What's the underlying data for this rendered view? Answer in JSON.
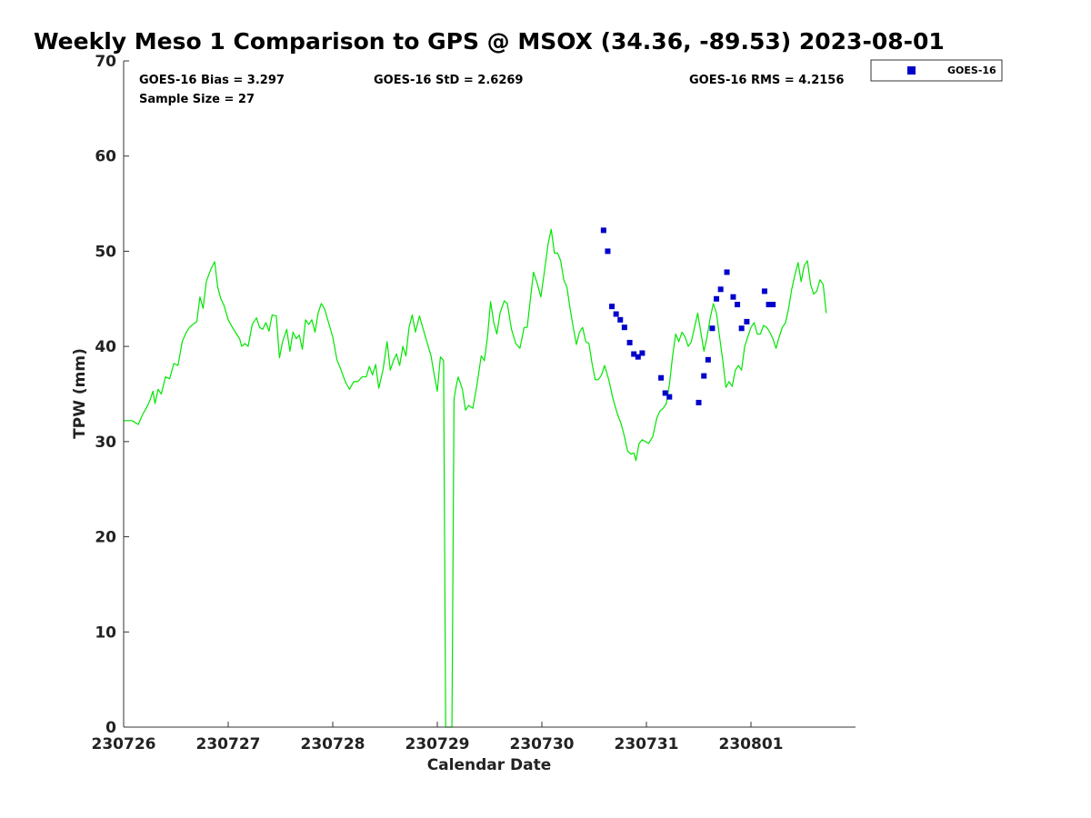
{
  "chart_data": {
    "type": "scatter",
    "title": "Weekly Meso 1 Comparison to GPS @ MSOX (34.36, -89.53) 2023-08-01",
    "xlabel": "Calendar Date",
    "ylabel": "TPW (mm)",
    "x_tick_labels": [
      "230726",
      "230727",
      "230728",
      "230729",
      "230730",
      "230731",
      "230801"
    ],
    "x_unit": "days from 230726",
    "xlim": [
      0,
      7
    ],
    "ylim": [
      0,
      70
    ],
    "y_ticks": [
      0,
      10,
      20,
      30,
      40,
      50,
      60,
      70
    ],
    "grid": false,
    "legend": {
      "position": "top-right-outside",
      "entries": [
        "GOES-16"
      ]
    },
    "stats": {
      "bias": "GOES-16 Bias = 3.297",
      "std": "GOES-16 StD = 2.6269",
      "rms": "GOES-16 RMS = 4.2156",
      "sample": "Sample Size = 27"
    },
    "series": [
      {
        "kind": "line",
        "color": "#00e600",
        "points": [
          [
            0.0,
            32.2
          ],
          [
            0.08,
            32.2
          ],
          [
            0.14,
            31.8
          ],
          [
            0.18,
            32.8
          ],
          [
            0.22,
            33.6
          ],
          [
            0.25,
            34.3
          ],
          [
            0.28,
            35.3
          ],
          [
            0.3,
            34.0
          ],
          [
            0.33,
            35.5
          ],
          [
            0.36,
            35.0
          ],
          [
            0.4,
            36.8
          ],
          [
            0.44,
            36.6
          ],
          [
            0.48,
            38.2
          ],
          [
            0.52,
            38.0
          ],
          [
            0.56,
            40.5
          ],
          [
            0.6,
            41.5
          ],
          [
            0.63,
            42.0
          ],
          [
            0.66,
            42.3
          ],
          [
            0.7,
            42.6
          ],
          [
            0.73,
            45.2
          ],
          [
            0.76,
            44.0
          ],
          [
            0.79,
            46.8
          ],
          [
            0.83,
            48.0
          ],
          [
            0.87,
            48.9
          ],
          [
            0.9,
            46.2
          ],
          [
            0.93,
            45.0
          ],
          [
            0.96,
            44.3
          ],
          [
            1.0,
            42.8
          ],
          [
            1.04,
            42.0
          ],
          [
            1.08,
            41.3
          ],
          [
            1.11,
            40.8
          ],
          [
            1.13,
            40.0
          ],
          [
            1.16,
            40.3
          ],
          [
            1.19,
            40.0
          ],
          [
            1.23,
            42.3
          ],
          [
            1.27,
            43.0
          ],
          [
            1.3,
            42.0
          ],
          [
            1.33,
            41.8
          ],
          [
            1.36,
            42.5
          ],
          [
            1.39,
            41.6
          ],
          [
            1.42,
            43.3
          ],
          [
            1.46,
            43.2
          ],
          [
            1.49,
            38.8
          ],
          [
            1.52,
            40.5
          ],
          [
            1.56,
            41.8
          ],
          [
            1.59,
            39.5
          ],
          [
            1.62,
            41.5
          ],
          [
            1.65,
            40.8
          ],
          [
            1.68,
            41.2
          ],
          [
            1.71,
            39.7
          ],
          [
            1.74,
            42.8
          ],
          [
            1.77,
            42.3
          ],
          [
            1.8,
            42.8
          ],
          [
            1.83,
            41.5
          ],
          [
            1.86,
            43.5
          ],
          [
            1.89,
            44.5
          ],
          [
            1.92,
            44.0
          ],
          [
            1.96,
            42.5
          ],
          [
            2.0,
            41.0
          ],
          [
            2.04,
            38.6
          ],
          [
            2.08,
            37.5
          ],
          [
            2.12,
            36.3
          ],
          [
            2.16,
            35.5
          ],
          [
            2.2,
            36.3
          ],
          [
            2.24,
            36.3
          ],
          [
            2.28,
            36.8
          ],
          [
            2.32,
            36.8
          ],
          [
            2.35,
            37.9
          ],
          [
            2.38,
            37.0
          ],
          [
            2.41,
            38.1
          ],
          [
            2.44,
            35.6
          ],
          [
            2.48,
            37.5
          ],
          [
            2.52,
            40.5
          ],
          [
            2.55,
            37.5
          ],
          [
            2.58,
            38.5
          ],
          [
            2.61,
            39.2
          ],
          [
            2.64,
            38.0
          ],
          [
            2.67,
            40.0
          ],
          [
            2.7,
            39.0
          ],
          [
            2.73,
            42.0
          ],
          [
            2.76,
            43.3
          ],
          [
            2.79,
            41.5
          ],
          [
            2.83,
            43.2
          ],
          [
            2.86,
            42.0
          ],
          [
            2.9,
            40.5
          ],
          [
            2.94,
            39.0
          ],
          [
            2.97,
            37.0
          ],
          [
            3.0,
            35.3
          ],
          [
            3.03,
            38.9
          ],
          [
            3.06,
            38.5
          ],
          [
            3.08,
            0
          ],
          [
            3.14,
            0
          ],
          [
            3.16,
            34.5
          ],
          [
            3.18,
            35.8
          ],
          [
            3.2,
            36.8
          ],
          [
            3.24,
            35.5
          ],
          [
            3.27,
            33.3
          ],
          [
            3.3,
            33.8
          ],
          [
            3.34,
            33.5
          ],
          [
            3.38,
            36.0
          ],
          [
            3.42,
            39.0
          ],
          [
            3.45,
            38.5
          ],
          [
            3.48,
            41.0
          ],
          [
            3.51,
            44.7
          ],
          [
            3.54,
            42.5
          ],
          [
            3.57,
            41.3
          ],
          [
            3.6,
            43.5
          ],
          [
            3.64,
            44.8
          ],
          [
            3.67,
            44.5
          ],
          [
            3.71,
            41.8
          ],
          [
            3.75,
            40.3
          ],
          [
            3.79,
            39.8
          ],
          [
            3.83,
            42.0
          ],
          [
            3.86,
            42.0
          ],
          [
            3.89,
            45.0
          ],
          [
            3.92,
            47.8
          ],
          [
            3.95,
            46.8
          ],
          [
            3.99,
            45.2
          ],
          [
            4.02,
            47.5
          ],
          [
            4.06,
            50.8
          ],
          [
            4.09,
            52.3
          ],
          [
            4.12,
            49.8
          ],
          [
            4.15,
            49.8
          ],
          [
            4.18,
            49.0
          ],
          [
            4.21,
            47.0
          ],
          [
            4.24,
            46.2
          ],
          [
            4.27,
            44.0
          ],
          [
            4.3,
            42.0
          ],
          [
            4.33,
            40.2
          ],
          [
            4.36,
            41.5
          ],
          [
            4.39,
            42.0
          ],
          [
            4.42,
            40.5
          ],
          [
            4.45,
            40.3
          ],
          [
            4.48,
            38.2
          ],
          [
            4.51,
            36.5
          ],
          [
            4.54,
            36.5
          ],
          [
            4.57,
            37.0
          ],
          [
            4.6,
            38.0
          ],
          [
            4.64,
            36.5
          ],
          [
            4.68,
            34.5
          ],
          [
            4.72,
            33.0
          ],
          [
            4.76,
            31.8
          ],
          [
            4.79,
            30.5
          ],
          [
            4.82,
            29.0
          ],
          [
            4.85,
            28.7
          ],
          [
            4.88,
            28.8
          ],
          [
            4.9,
            28.0
          ],
          [
            4.93,
            29.8
          ],
          [
            4.96,
            30.2
          ],
          [
            4.99,
            30.0
          ],
          [
            5.02,
            29.8
          ],
          [
            5.06,
            30.5
          ],
          [
            5.1,
            32.5
          ],
          [
            5.13,
            33.2
          ],
          [
            5.16,
            33.5
          ],
          [
            5.19,
            34.0
          ],
          [
            5.22,
            36.0
          ],
          [
            5.25,
            39.0
          ],
          [
            5.28,
            41.3
          ],
          [
            5.31,
            40.5
          ],
          [
            5.34,
            41.5
          ],
          [
            5.37,
            41.0
          ],
          [
            5.4,
            40.0
          ],
          [
            5.43,
            40.5
          ],
          [
            5.46,
            42.0
          ],
          [
            5.49,
            43.5
          ],
          [
            5.52,
            41.5
          ],
          [
            5.55,
            39.5
          ],
          [
            5.58,
            41.0
          ],
          [
            5.61,
            43.0
          ],
          [
            5.64,
            44.5
          ],
          [
            5.67,
            43.5
          ],
          [
            5.7,
            41.0
          ],
          [
            5.73,
            38.5
          ],
          [
            5.76,
            35.7
          ],
          [
            5.79,
            36.3
          ],
          [
            5.82,
            35.8
          ],
          [
            5.85,
            37.5
          ],
          [
            5.88,
            38.0
          ],
          [
            5.91,
            37.5
          ],
          [
            5.94,
            40.0
          ],
          [
            5.97,
            41.0
          ],
          [
            6.0,
            42.0
          ],
          [
            6.03,
            42.5
          ],
          [
            6.06,
            41.3
          ],
          [
            6.09,
            41.3
          ],
          [
            6.12,
            42.2
          ],
          [
            6.15,
            42.0
          ],
          [
            6.18,
            41.5
          ],
          [
            6.21,
            40.8
          ],
          [
            6.24,
            39.8
          ],
          [
            6.27,
            41.0
          ],
          [
            6.3,
            42.0
          ],
          [
            6.33,
            42.5
          ],
          [
            6.36,
            44.0
          ],
          [
            6.39,
            46.0
          ],
          [
            6.42,
            47.5
          ],
          [
            6.45,
            48.8
          ],
          [
            6.48,
            46.8
          ],
          [
            6.51,
            48.5
          ],
          [
            6.54,
            49.0
          ],
          [
            6.57,
            46.5
          ],
          [
            6.6,
            45.5
          ],
          [
            6.63,
            45.8
          ],
          [
            6.66,
            47.0
          ],
          [
            6.69,
            46.5
          ],
          [
            6.72,
            43.5
          ]
        ]
      },
      {
        "kind": "scatter",
        "name": "GOES-16",
        "color": "#0000cc",
        "points": [
          [
            4.59,
            52.2
          ],
          [
            4.63,
            50.0
          ],
          [
            4.67,
            44.2
          ],
          [
            4.71,
            43.4
          ],
          [
            4.75,
            42.8
          ],
          [
            4.79,
            42.0
          ],
          [
            4.84,
            40.4
          ],
          [
            4.88,
            39.2
          ],
          [
            4.92,
            38.9
          ],
          [
            4.96,
            39.3
          ],
          [
            5.14,
            36.7
          ],
          [
            5.18,
            35.1
          ],
          [
            5.22,
            34.7
          ],
          [
            5.5,
            34.1
          ],
          [
            5.55,
            36.9
          ],
          [
            5.59,
            38.6
          ],
          [
            5.63,
            41.9
          ],
          [
            5.67,
            45.0
          ],
          [
            5.71,
            46.0
          ],
          [
            5.77,
            47.8
          ],
          [
            5.83,
            45.2
          ],
          [
            5.87,
            44.4
          ],
          [
            5.91,
            41.9
          ],
          [
            5.96,
            42.6
          ],
          [
            6.13,
            45.8
          ],
          [
            6.17,
            44.4
          ],
          [
            6.21,
            44.4
          ]
        ]
      }
    ]
  }
}
